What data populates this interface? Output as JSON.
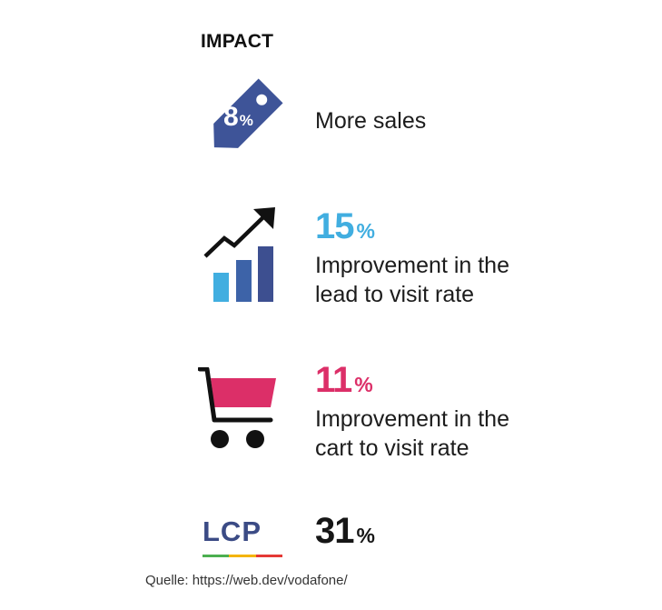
{
  "heading": "IMPACT",
  "sales": {
    "tag_value": "8",
    "tag_percent": "%",
    "label": "More sales",
    "tag_color": "#3e5498"
  },
  "lead": {
    "value": "15",
    "percent": "%",
    "line1": "Improvement in the",
    "line2": "lead to visit rate",
    "color": "#41aee0",
    "icon": "growth-chart-icon"
  },
  "cart": {
    "value": "11",
    "percent": "%",
    "line1": "Improvement in the",
    "line2": "cart to visit rate",
    "color": "#dc2f68",
    "icon": "shopping-cart-icon"
  },
  "lcp": {
    "logo_text": "LCP",
    "value": "31",
    "percent": "%",
    "logo_color": "#3b4b85",
    "bar_colors": [
      "#4caf50",
      "#f4b400",
      "#e53935"
    ]
  },
  "source": "Quelle: https://web.dev/vodafone/"
}
